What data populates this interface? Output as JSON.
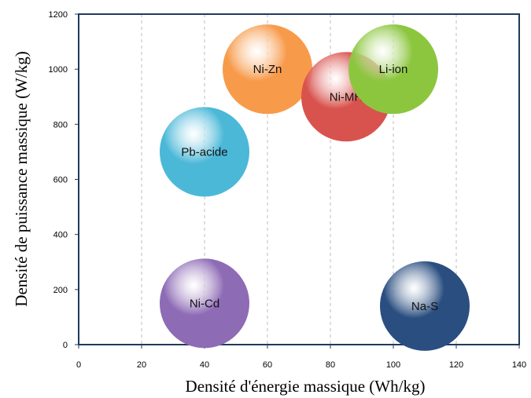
{
  "chart_data": {
    "type": "bubble",
    "title": "",
    "xlabel": "Densité d'énergie massique (Wh/kg)",
    "ylabel": "Densité de puissance massique  (W/kg)",
    "xlim": [
      0,
      140
    ],
    "ylim": [
      0,
      1200
    ],
    "xticks": [
      0,
      20,
      40,
      60,
      80,
      100,
      120,
      140
    ],
    "yticks": [
      0,
      200,
      400,
      600,
      800,
      1000,
      1200
    ],
    "grid": "vertical dashed",
    "legend": "none",
    "points": [
      {
        "label": "Ni-Zn",
        "x": 60,
        "y": 1000,
        "size": 1,
        "color": "#f79a4a"
      },
      {
        "label": "Ni-MH",
        "x": 85,
        "y": 900,
        "size": 1,
        "color": "#d9534e"
      },
      {
        "label": "Li-ion",
        "x": 100,
        "y": 1000,
        "size": 1,
        "color": "#8cc63f"
      },
      {
        "label": "Pb-acide",
        "x": 40,
        "y": 700,
        "size": 1,
        "color": "#4bb8d8"
      },
      {
        "label": "Ni-Cd",
        "x": 40,
        "y": 150,
        "size": 1,
        "color": "#8e6bb5"
      },
      {
        "label": "Na-S",
        "x": 110,
        "y": 140,
        "size": 1,
        "color": "#2a4e80"
      }
    ]
  }
}
